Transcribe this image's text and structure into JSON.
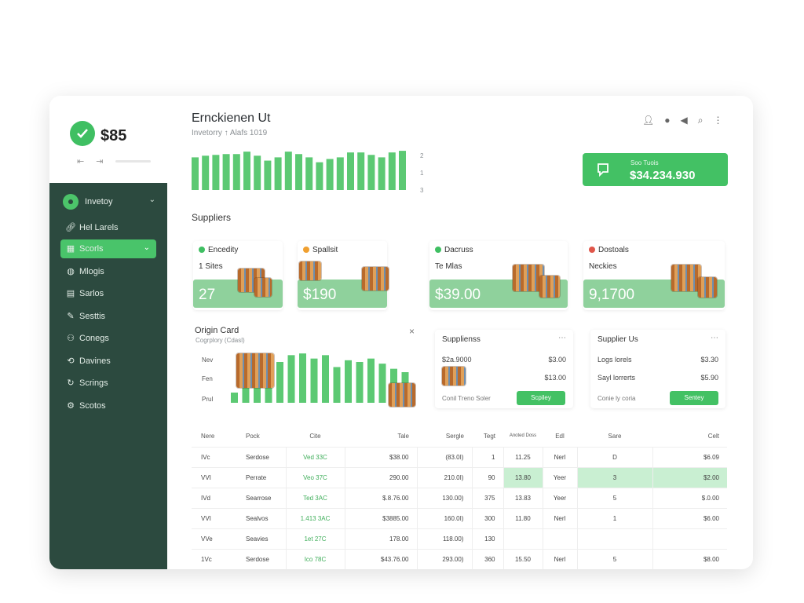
{
  "brand": {
    "name": "$85",
    "nav_arrows": "⇤ ⇥"
  },
  "sidebar": {
    "header": "Invetoy",
    "items": [
      {
        "label": "Hel Larels",
        "icon": "link-icon"
      },
      {
        "label": "Scorls",
        "icon": "box-icon",
        "active": true
      },
      {
        "label": "Mlogis",
        "icon": "chat-icon"
      },
      {
        "label": "Sarlos",
        "icon": "document-icon"
      },
      {
        "label": "Sesttis",
        "icon": "pencil-icon"
      },
      {
        "label": "Conegs",
        "icon": "users-icon"
      },
      {
        "label": "Davines",
        "icon": "sync-icon"
      },
      {
        "label": "Scrings",
        "icon": "refresh-icon"
      },
      {
        "label": "Scotos",
        "icon": "settings-icon"
      }
    ]
  },
  "header": {
    "title": "Ernckienen Ut",
    "subtitle": "Invetorry ↑ Alafs 1019",
    "scale": [
      "2",
      "1",
      "3"
    ],
    "top_bar_values": [
      40,
      42,
      43,
      44,
      44,
      47,
      42,
      36,
      40,
      47,
      44,
      40,
      34,
      38,
      40,
      46,
      46,
      43,
      40,
      46,
      48
    ]
  },
  "total": {
    "label": "Soo Tuois",
    "value": "$34.234.930"
  },
  "suppliers_title": "Suppliers",
  "supplier_cards": [
    {
      "name": "Encedity",
      "sub": "1 Sites",
      "value": "27",
      "dot": "#3fbf62"
    },
    {
      "name": "Spallsit",
      "sub": "",
      "value": "$190",
      "dot": "#f0a030"
    },
    {
      "name": "Dacruss",
      "sub": "Te Mlas",
      "value": "$39.00",
      "dot": "#3fbf62"
    },
    {
      "name": "Dostoals",
      "sub": "Neckies",
      "value": "9,1700",
      "dot": "#e0564a"
    }
  ],
  "origin": {
    "title": "Origin Card",
    "subtitle": "Cogrplory (Cdasl)",
    "y_labels": [
      "Nev",
      "Fen",
      "Prul"
    ],
    "bar_values": [
      12,
      18,
      44,
      46,
      48,
      56,
      58,
      52,
      56,
      42,
      50,
      48,
      52,
      46,
      40,
      36
    ]
  },
  "panel1": {
    "title": "Supplienss",
    "rows": [
      {
        "label": "$2a.9000",
        "value": "$3.00"
      },
      {
        "label": "",
        "value": "$13.00"
      }
    ],
    "footer": "Conil Treno Soler",
    "button": "Scpiley"
  },
  "panel2": {
    "title": "Supplier Us",
    "rows": [
      {
        "label": "Logs lorels",
        "value": "$3.30"
      },
      {
        "label": "Sayl lorrerts",
        "value": "$5.90"
      }
    ],
    "footer": "Conie ly coria",
    "button": "Sentey"
  },
  "table": {
    "headers": [
      "Nere",
      "Pock",
      "Cite",
      "Tale",
      "Sergle",
      "Tegt",
      "Anoted Doss",
      "Edl",
      "Sare",
      "Celt"
    ],
    "rows": [
      [
        "IVc",
        "Serdose",
        "Ved 33C",
        "$38.00",
        "(83.0I)",
        "1",
        "11.25",
        "Nerl",
        "D",
        "$6.09"
      ],
      [
        "VVI",
        "Perrate",
        "Veo 37C",
        "290.00",
        "210.0I)",
        "90",
        "13.80",
        "Yeer",
        "3",
        "$2.00"
      ],
      [
        "IVd",
        "Searrose",
        "Ted 3AC",
        "$.8.76.00",
        "130.00)",
        "375",
        "13.83",
        "Yeer",
        "5",
        "$.0.00"
      ],
      [
        "VVI",
        "Sealvos",
        "1.413 3AC",
        "$3885.00",
        "160.0I)",
        "300",
        "11.80",
        "Nerl",
        "1",
        "$6.00"
      ],
      [
        "VVe",
        "Seavies",
        "1et 27C",
        "178.00",
        "118.00)",
        "130",
        "",
        "",
        "",
        ""
      ],
      [
        "1Vc",
        "Serdose",
        "Ico 78C",
        "$43.76.00",
        "293.00)",
        "360",
        "15.50",
        "Nerl",
        "5",
        "$8.00"
      ]
    ]
  },
  "colors": {
    "accent": "#43c164",
    "sidebar": "#2c4a3f",
    "bar": "#5cc973",
    "band": "#8fd19c",
    "highlight": "#c9efd2"
  }
}
